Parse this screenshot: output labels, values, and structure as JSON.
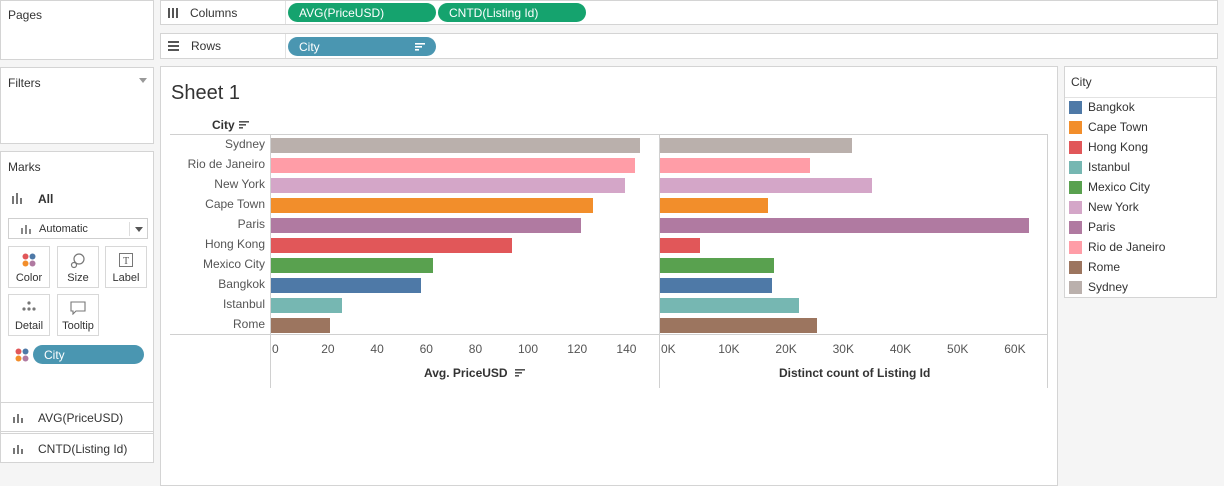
{
  "left_panel": {
    "pages_title": "Pages",
    "filters_title": "Filters",
    "marks_title": "Marks",
    "marks_all_label": "All",
    "mark_type": "Automatic",
    "mark_buttons": [
      "Color",
      "Size",
      "Label",
      "Detail",
      "Tooltip"
    ],
    "color_pill": "City",
    "measure_items": [
      "AVG(PriceUSD)",
      "CNTD(Listing Id)"
    ]
  },
  "shelves": {
    "columns_label": "Columns",
    "columns_pills": [
      "AVG(PriceUSD)",
      "CNTD(Listing Id)"
    ],
    "rows_label": "Rows",
    "rows_pills": [
      "City"
    ]
  },
  "sheet": {
    "title": "Sheet 1",
    "row_header": "City"
  },
  "chart_data": {
    "type": "bar",
    "orientation": "horizontal",
    "categories": [
      "Sydney",
      "Rio de Janeiro",
      "New York",
      "Cape Town",
      "Paris",
      "Hong Kong",
      "Mexico City",
      "Bangkok",
      "Istanbul",
      "Rome"
    ],
    "series": [
      {
        "name": "Avg. PriceUSD",
        "values": [
          150,
          148,
          144,
          131,
          126,
          98,
          66,
          61,
          29,
          24
        ],
        "xlim": [
          0,
          150
        ],
        "ticks": [
          0,
          20,
          40,
          60,
          80,
          100,
          120,
          140
        ],
        "tick_labels": [
          "0",
          "20",
          "40",
          "60",
          "80",
          "100",
          "120",
          "140"
        ],
        "xlabel": "Avg. PriceUSD"
      },
      {
        "name": "Distinct count of Listing Id",
        "values": [
          33500,
          26300,
          37000,
          18800,
          64500,
          7000,
          19900,
          19500,
          24300,
          27400
        ],
        "xlim": [
          0,
          64500
        ],
        "ticks": [
          0,
          10000,
          20000,
          30000,
          40000,
          50000,
          60000
        ],
        "tick_labels": [
          "0K",
          "10K",
          "20K",
          "30K",
          "40K",
          "50K",
          "60K"
        ],
        "xlabel": "Distinct count of Listing Id"
      }
    ],
    "colors": {
      "Bangkok": "#4e79a7",
      "Cape Town": "#f28e2b",
      "Hong Kong": "#e15759",
      "Istanbul": "#76b7b2",
      "Mexico City": "#59a14f",
      "New York": "#d4a6c8",
      "Paris": "#b07aa1",
      "Rio de Janeiro": "#ff9da7",
      "Rome": "#9c755f",
      "Sydney": "#bab0ac"
    }
  },
  "legend": {
    "title": "City",
    "items": [
      "Bangkok",
      "Cape Town",
      "Hong Kong",
      "Istanbul",
      "Mexico City",
      "New York",
      "Paris",
      "Rio de Janeiro",
      "Rome",
      "Sydney"
    ]
  }
}
